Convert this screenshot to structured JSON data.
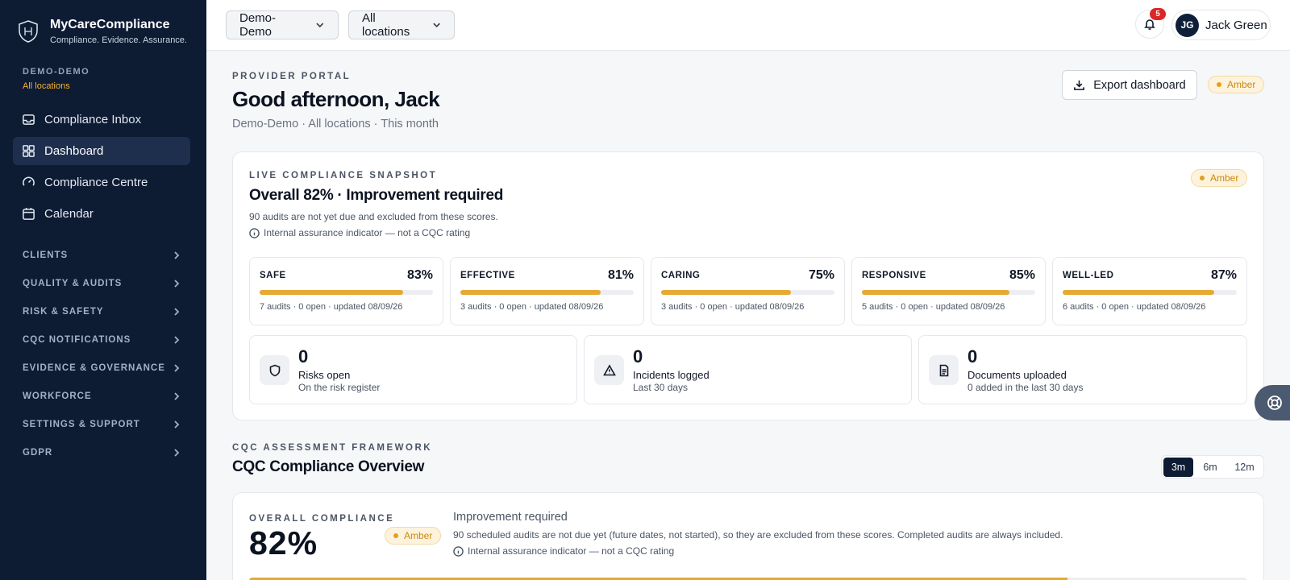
{
  "brand": {
    "name": "MyCareCompliance",
    "tagline": "Compliance. Evidence. Assurance."
  },
  "org": {
    "code": "DEMO-DEMO",
    "location": "All locations"
  },
  "nav": [
    {
      "label": "Compliance Inbox",
      "icon": "inbox-icon",
      "active": false
    },
    {
      "label": "Dashboard",
      "icon": "dashboard-icon",
      "active": true
    },
    {
      "label": "Compliance Centre",
      "icon": "gauge-icon",
      "active": false
    },
    {
      "label": "Calendar",
      "icon": "calendar-icon",
      "active": false
    }
  ],
  "groups": [
    "CLIENTS",
    "QUALITY & AUDITS",
    "RISK & SAFETY",
    "CQC NOTIFICATIONS",
    "EVIDENCE & GOVERNANCE",
    "WORKFORCE",
    "SETTINGS & SUPPORT",
    "GDPR"
  ],
  "topbar": {
    "org_select": "Demo-Demo",
    "location_select": "All locations",
    "notifications": "5",
    "user_initials": "JG",
    "user_name": "Jack Green"
  },
  "header": {
    "eyebrow": "PROVIDER PORTAL",
    "greeting": "Good afternoon, Jack",
    "context": "Demo-Demo · All locations · This month",
    "export_label": "Export dashboard",
    "status": "Amber"
  },
  "snapshot": {
    "eyebrow": "LIVE COMPLIANCE SNAPSHOT",
    "title": "Overall 82% · Improvement required",
    "note": "90 audits are not yet due and excluded from these scores.",
    "info": "Internal assurance indicator — not a CQC rating",
    "status": "Amber",
    "domains": [
      {
        "label": "SAFE",
        "pct": "83%",
        "value": 83,
        "meta": "7 audits · 0 open · updated 08/09/26"
      },
      {
        "label": "EFFECTIVE",
        "pct": "81%",
        "value": 81,
        "meta": "3 audits · 0 open · updated 08/09/26"
      },
      {
        "label": "CARING",
        "pct": "75%",
        "value": 75,
        "meta": "3 audits · 0 open · updated 08/09/26"
      },
      {
        "label": "RESPONSIVE",
        "pct": "85%",
        "value": 85,
        "meta": "5 audits · 0 open · updated 08/09/26"
      },
      {
        "label": "WELL-LED",
        "pct": "87%",
        "value": 87,
        "meta": "6 audits · 0 open · updated 08/09/26"
      }
    ],
    "metrics": [
      {
        "value": "0",
        "label": "Risks open",
        "sub": "On the risk register",
        "icon": "shield-icon"
      },
      {
        "value": "0",
        "label": "Incidents logged",
        "sub": "Last 30 days",
        "icon": "warning-icon"
      },
      {
        "value": "0",
        "label": "Documents uploaded",
        "sub": "0 added in the last 30 days",
        "icon": "document-icon"
      }
    ]
  },
  "framework": {
    "eyebrow": "CQC ASSESSMENT FRAMEWORK",
    "title": "CQC Compliance Overview",
    "ranges": [
      "3m",
      "6m",
      "12m"
    ],
    "active_range": "3m"
  },
  "overall": {
    "eyebrow": "OVERALL COMPLIANCE",
    "pct": "82%",
    "value": 82,
    "status": "Amber",
    "headline": "Improvement required",
    "note": "90 scheduled audits are not due yet (future dates, not started), so they are excluded from these scores. Completed audits are always included.",
    "info": "Internal assurance indicator — not a CQC rating"
  },
  "colors": {
    "sidebar": "#0d1b33",
    "accent": "#e5a934",
    "amber_text": "#c98912",
    "badge": "#dc2626"
  }
}
